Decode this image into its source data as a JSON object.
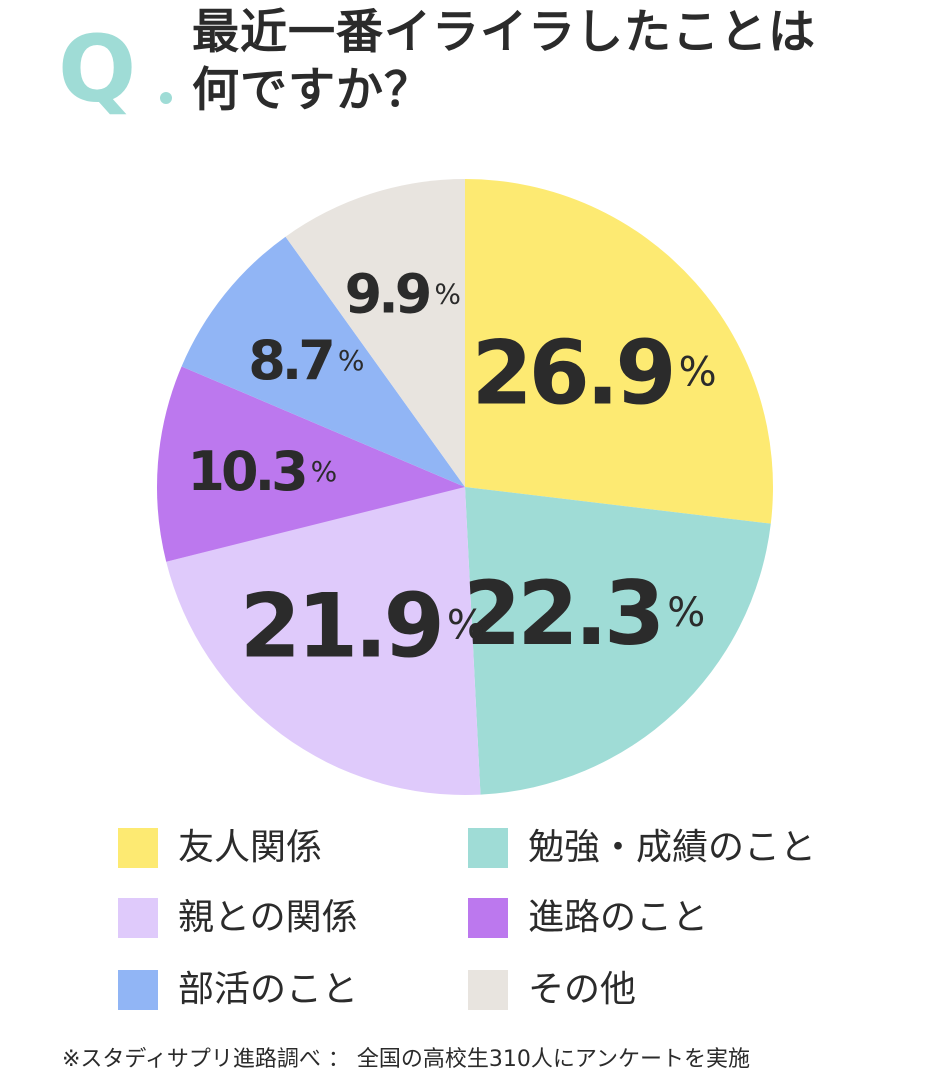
{
  "title": {
    "q_label": "Q",
    "line1": "最近一番イライラしたことは",
    "line2": "何ですか？"
  },
  "chart_data": {
    "type": "pie",
    "start_angle_deg": 0,
    "direction": "clockwise",
    "slices": [
      {
        "label": "友人関係",
        "value": 26.9,
        "display": "26.9",
        "unit": "%",
        "color": "#fdea72",
        "label_size": "large"
      },
      {
        "label": "勉強・成績のこと",
        "value": 22.3,
        "display": "22.3",
        "unit": "%",
        "color": "#9fdcd6",
        "label_size": "large"
      },
      {
        "label": "親との関係",
        "value": 21.9,
        "display": "21.9",
        "unit": "%",
        "color": "#dfcafb",
        "label_size": "large"
      },
      {
        "label": "進路のこと",
        "value": 10.3,
        "display": "10.3",
        "unit": "%",
        "color": "#bc78ee",
        "label_size": "small"
      },
      {
        "label": "部活のこと",
        "value": 8.7,
        "display": "8.7",
        "unit": "%",
        "color": "#91b5f5",
        "label_size": "small"
      },
      {
        "label": "その他",
        "value": 9.9,
        "display": "9.9",
        "unit": "%",
        "color": "#e8e4df",
        "label_size": "small"
      }
    ],
    "legend_position": "bottom"
  },
  "footnote": "※スタディサプリ進路調べ ： 全国の高校生310人にアンケートを実施"
}
